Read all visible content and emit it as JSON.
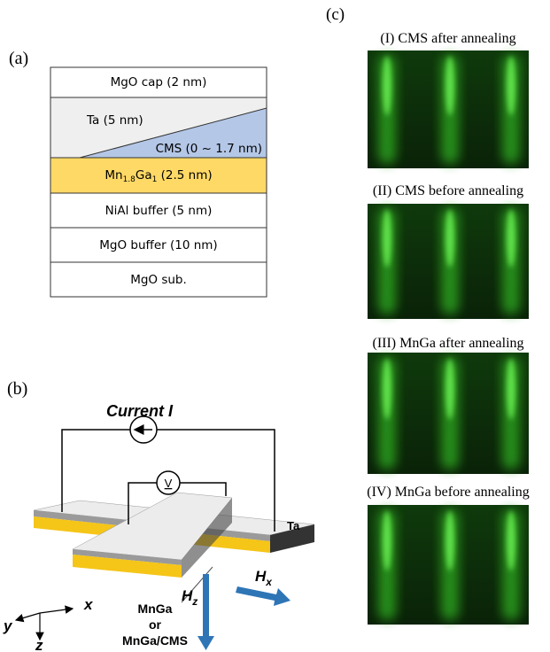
{
  "panel_a": {
    "label": "(a)",
    "layers": {
      "mgo_cap": "MgO cap (2 nm)",
      "ta": "Ta (5 nm)",
      "cms": "CMS (0 ~ 1.7 nm)",
      "mnga": {
        "el1": "Mn",
        "sub1": "1.8",
        "el2": "Ga",
        "sub2": "1",
        "rest": " (2.5 nm)"
      },
      "nial": "NiAl buffer (5 nm)",
      "mgo_buffer": "MgO buffer (10 nm)",
      "mgo_sub": "MgO sub."
    }
  },
  "panel_b": {
    "label": "(b)",
    "current": "Current I",
    "voltmeter": "V",
    "ta": "Ta",
    "sample": [
      "MnGa",
      "or",
      "MnGa/CMS"
    ],
    "axes": {
      "x": "x",
      "y": "y",
      "z": "z"
    },
    "hx": {
      "symbol": "H",
      "sub": "x"
    },
    "hz": {
      "symbol": "H",
      "sub": "z"
    }
  },
  "panel_c": {
    "label": "(c)",
    "images": [
      "(I) CMS after annealing",
      "(II) CMS before annealing",
      "(III) MnGa after annealing",
      "(IV) MnGa before annealing"
    ]
  }
}
